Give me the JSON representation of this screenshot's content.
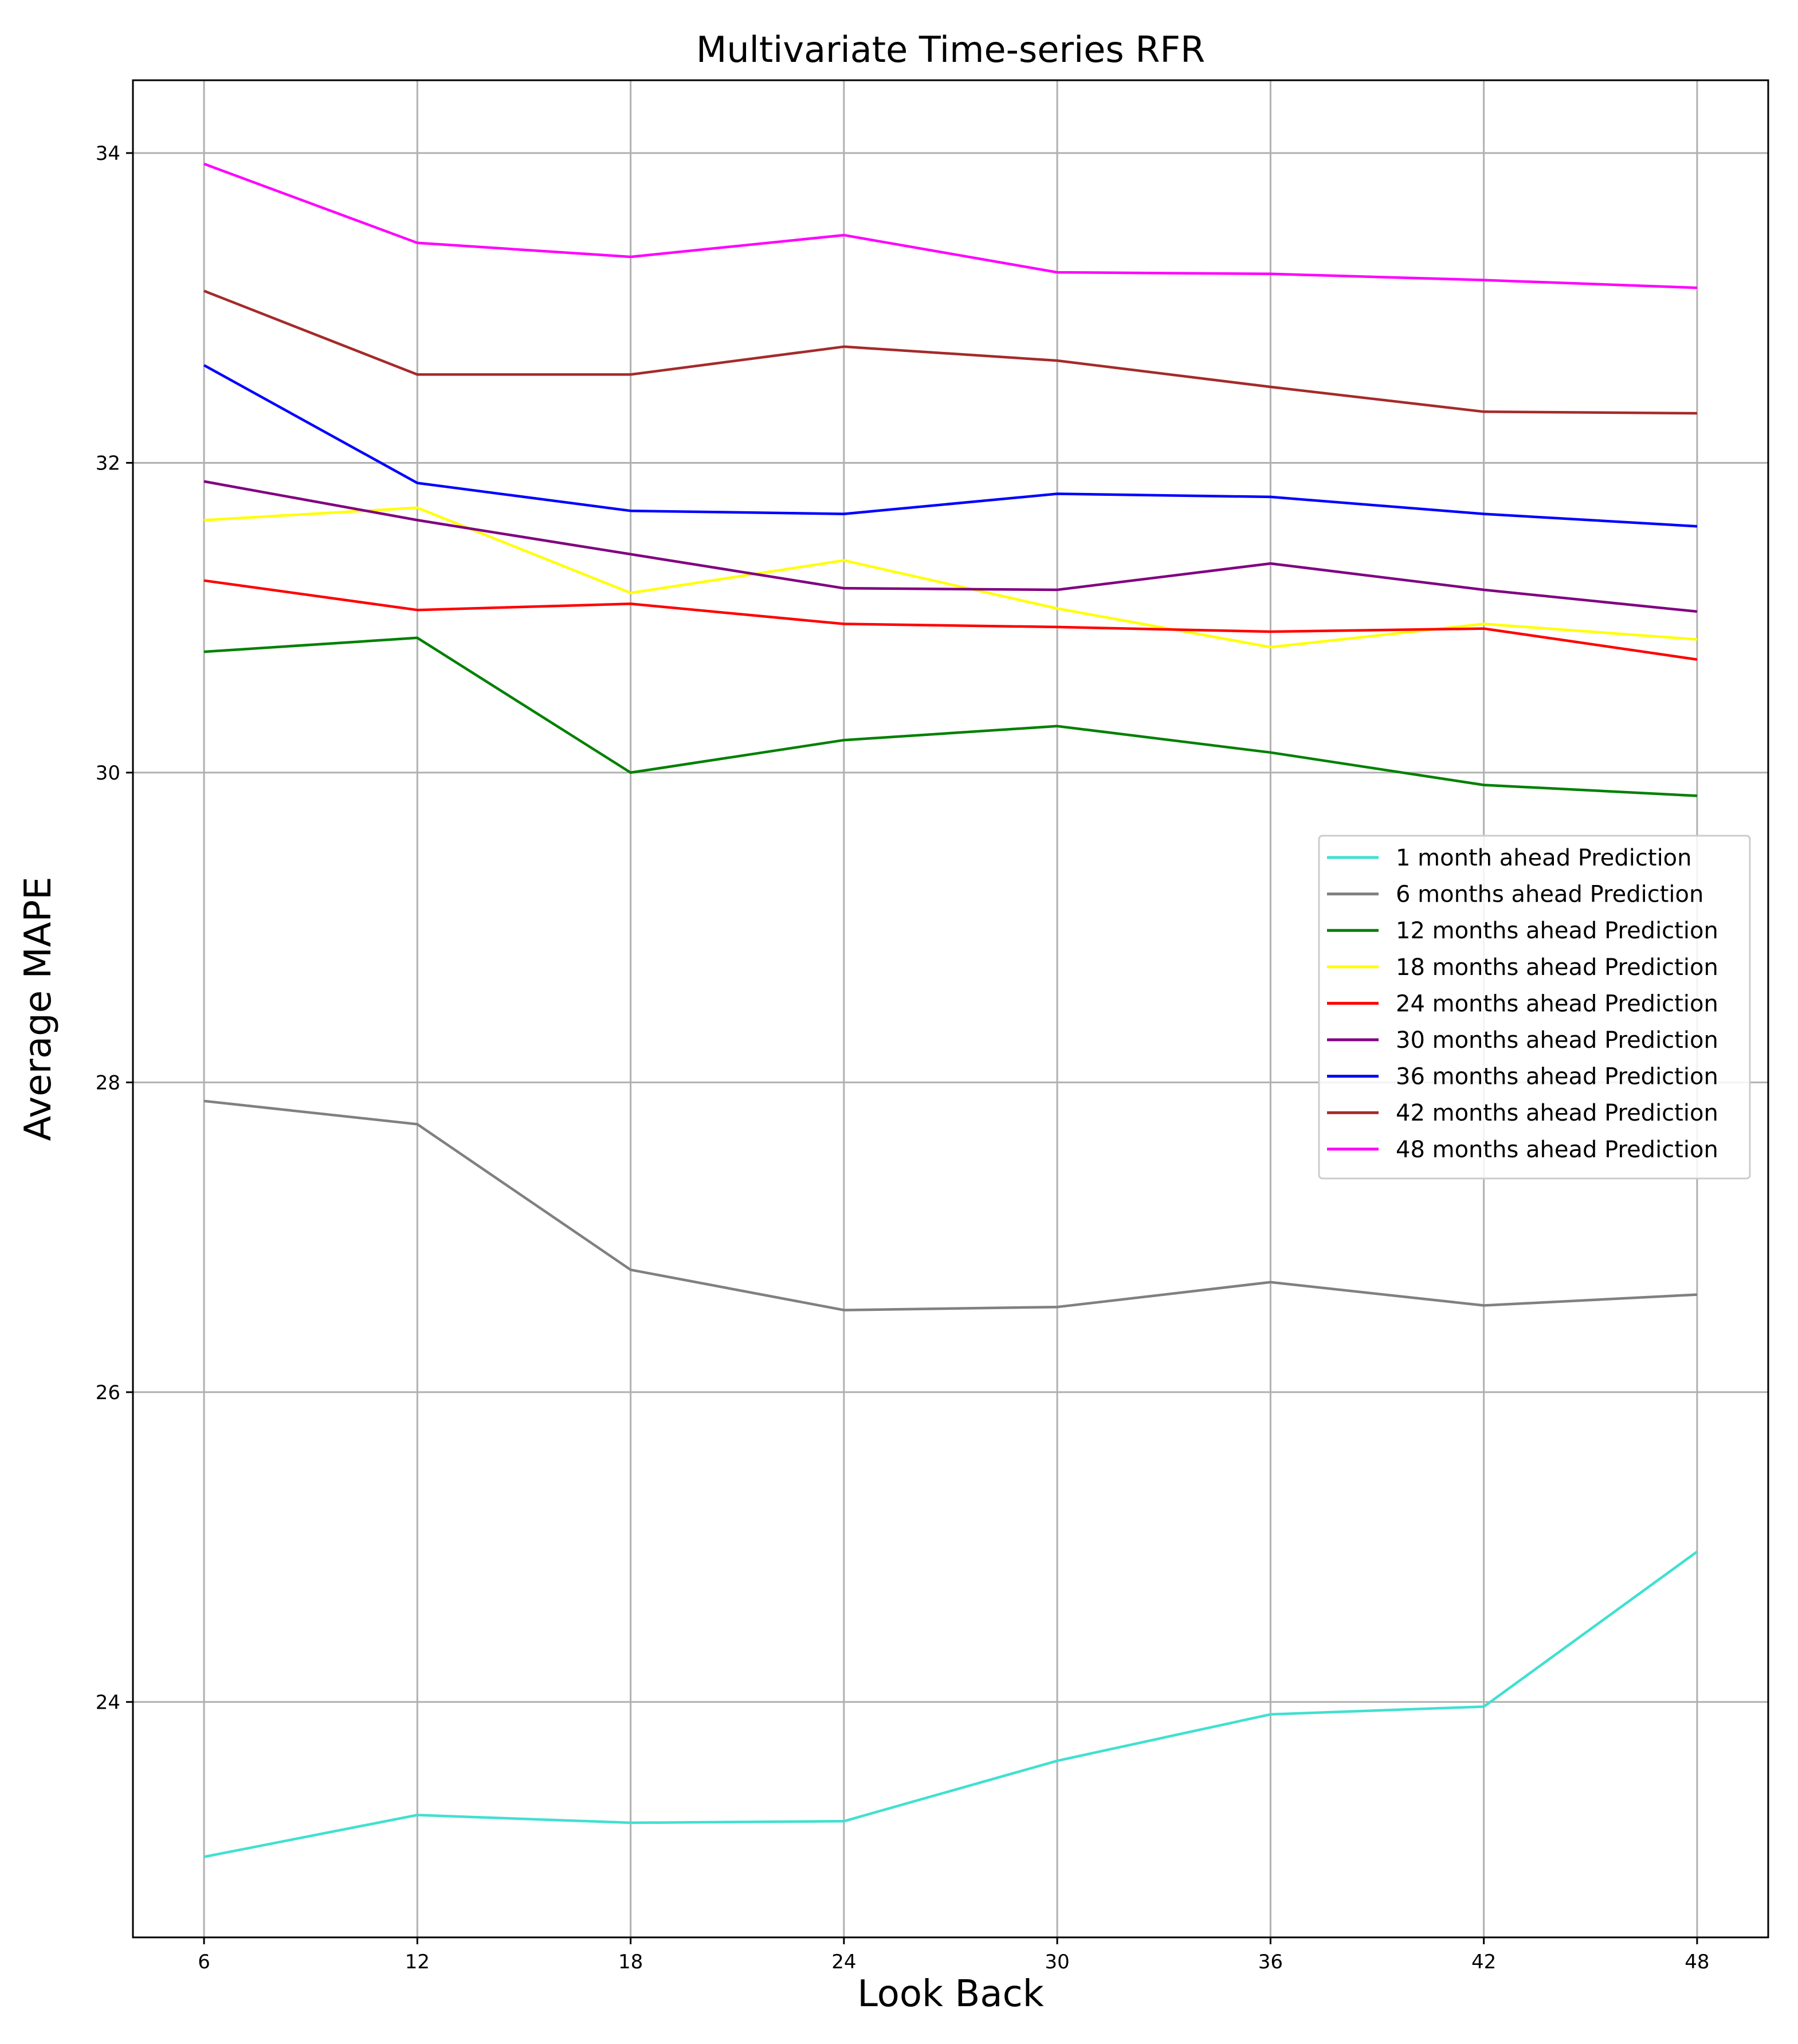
{
  "chart_data": {
    "type": "line",
    "title": "Multivariate Time-series RFR",
    "xlabel": "Look Back",
    "ylabel": "Average MAPE",
    "x": [
      6,
      12,
      18,
      24,
      30,
      36,
      42,
      48
    ],
    "x_tick_labels": [
      "6",
      "12",
      "18",
      "24",
      "30",
      "36",
      "42",
      "48"
    ],
    "y_ticks": [
      24,
      26,
      28,
      30,
      32,
      34
    ],
    "y_tick_labels": [
      "24",
      "26",
      "28",
      "30",
      "32",
      "34"
    ],
    "xlim": [
      4,
      50
    ],
    "ylim": [
      22.48,
      34.47
    ],
    "grid": true,
    "legend_position": "center-right",
    "series": [
      {
        "name": "1 month ahead Prediction",
        "color": "#40e0d0",
        "values": [
          23.0,
          23.27,
          23.22,
          23.23,
          23.62,
          23.92,
          23.97,
          24.97
        ]
      },
      {
        "name": "6 months ahead Prediction",
        "color": "#808080",
        "values": [
          27.88,
          27.73,
          26.79,
          26.53,
          26.55,
          26.71,
          26.56,
          26.63
        ]
      },
      {
        "name": "12 months ahead Prediction",
        "color": "#008000",
        "values": [
          30.78,
          30.87,
          30.0,
          30.21,
          30.3,
          30.13,
          29.92,
          29.85
        ]
      },
      {
        "name": "18 months ahead Prediction",
        "color": "#ffff00",
        "values": [
          31.63,
          31.71,
          31.16,
          31.37,
          31.06,
          30.81,
          30.96,
          30.86
        ]
      },
      {
        "name": "24 months ahead Prediction",
        "color": "#ff0000",
        "values": [
          31.24,
          31.05,
          31.09,
          30.96,
          30.94,
          30.91,
          30.93,
          30.73
        ]
      },
      {
        "name": "30 months ahead Prediction",
        "color": "#800080",
        "values": [
          31.88,
          31.63,
          31.41,
          31.19,
          31.18,
          31.35,
          31.18,
          31.04
        ]
      },
      {
        "name": "36 months ahead Prediction",
        "color": "#0000ff",
        "values": [
          32.63,
          31.87,
          31.69,
          31.67,
          31.8,
          31.78,
          31.67,
          31.59
        ]
      },
      {
        "name": "42 months ahead Prediction",
        "color": "#a52a2a",
        "values": [
          33.11,
          32.57,
          32.57,
          32.75,
          32.66,
          32.49,
          32.33,
          32.32
        ]
      },
      {
        "name": "48 months ahead Prediction",
        "color": "#ff00ff",
        "values": [
          33.93,
          33.42,
          33.33,
          33.47,
          33.23,
          33.22,
          33.18,
          33.13
        ]
      }
    ]
  }
}
